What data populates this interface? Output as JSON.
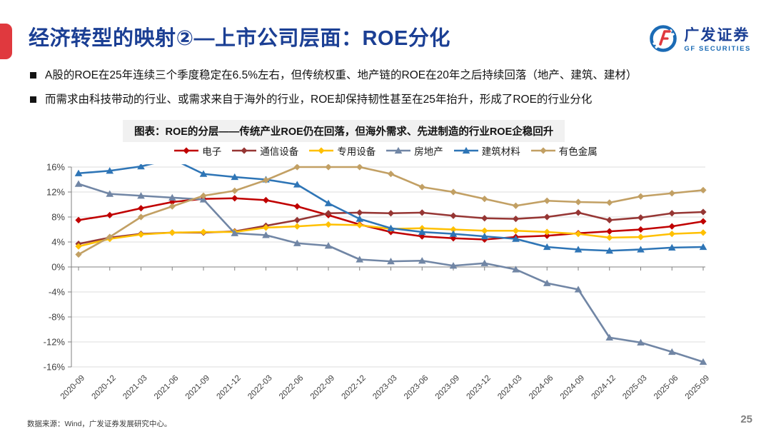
{
  "header": {
    "title": "经济转型的映射②—上市公司层面：ROE分化",
    "logo": {
      "name": "广发证券",
      "sub": "GF SECURITIES"
    }
  },
  "bullets": [
    {
      "glyph": "■",
      "text": "A股的ROE在25年连续三个季度稳定在6.5%左右，但传统权重、地产链的ROE在20年之后持续回落（地产、建筑、建材）"
    },
    {
      "glyph": "■",
      "text": "而需求由科技带动的行业、或需求来自于海外的行业，ROE却保持韧性甚至在25年抬升，形成了ROE的行业分化"
    }
  ],
  "chart_data": {
    "type": "line",
    "title": "图表：ROE的分层——传统产业ROE仍在回落，但海外需求、先进制造的行业ROE企稳回升",
    "categories": [
      "2020-09",
      "2020-12",
      "2021-03",
      "2021-06",
      "2021-09",
      "2021-12",
      "2022-03",
      "2022-06",
      "2022-09",
      "2022-12",
      "2023-03",
      "2023-06",
      "2023-09",
      "2023-12",
      "2024-03",
      "2024-06",
      "2024-09",
      "2024-12",
      "2025-03",
      "2025-06",
      "2025-09"
    ],
    "series": [
      {
        "name": "电子",
        "color": "#c00000",
        "marker": "diamond",
        "values": [
          7.5,
          8.3,
          9.4,
          10.4,
          10.9,
          11.0,
          10.7,
          9.7,
          8.3,
          6.8,
          5.6,
          4.9,
          4.6,
          4.4,
          4.8,
          5.0,
          5.4,
          5.7,
          6.0,
          6.5,
          7.3
        ]
      },
      {
        "name": "通信设备",
        "color": "#963634",
        "marker": "diamond",
        "values": [
          3.7,
          4.7,
          5.3,
          5.5,
          5.5,
          5.7,
          6.6,
          7.5,
          8.6,
          8.7,
          8.6,
          8.7,
          8.2,
          7.8,
          7.7,
          8.0,
          8.7,
          7.5,
          7.9,
          8.6,
          8.8
        ]
      },
      {
        "name": "专用设备",
        "color": "#ffc000",
        "marker": "diamond",
        "values": [
          3.3,
          4.5,
          5.2,
          5.5,
          5.6,
          5.6,
          6.3,
          6.5,
          6.8,
          6.7,
          6.1,
          6.2,
          6.0,
          5.8,
          5.8,
          5.6,
          5.3,
          4.7,
          4.8,
          5.3,
          5.5
        ]
      },
      {
        "name": "房地产",
        "color": "#7186a5",
        "marker": "triangle",
        "values": [
          13.3,
          11.7,
          11.4,
          11.1,
          10.8,
          5.4,
          5.1,
          3.8,
          3.4,
          1.2,
          0.9,
          1.0,
          0.2,
          0.6,
          -0.4,
          -2.6,
          -3.6,
          -11.3,
          -12.1,
          -13.6,
          -15.2
        ]
      },
      {
        "name": "建筑材料",
        "color": "#2e75b6",
        "marker": "triangle",
        "values": [
          15.0,
          15.4,
          16.1,
          17.3,
          14.9,
          14.4,
          14.0,
          13.2,
          10.2,
          7.7,
          6.2,
          5.6,
          5.3,
          4.9,
          4.5,
          3.2,
          2.8,
          2.6,
          2.8,
          3.1,
          3.2
        ]
      },
      {
        "name": "有色金属",
        "color": "#c2a064",
        "marker": "diamond",
        "values": [
          2.0,
          4.8,
          8.0,
          9.7,
          11.4,
          12.2,
          13.9,
          16.0,
          16.0,
          16.0,
          14.9,
          12.8,
          12.0,
          10.9,
          9.8,
          10.6,
          10.4,
          10.3,
          11.3,
          11.8,
          12.3
        ]
      }
    ],
    "xlabel": "",
    "ylabel": "",
    "ylim": [
      -16,
      16
    ],
    "ytick_step": 4,
    "ytick_suffix": "%",
    "grid": true,
    "legend_position": "top",
    "clip_above": 16.45
  },
  "footer": {
    "source": "数据来源：Wind，广发证券发展研究中心。",
    "page": "25"
  },
  "colors": {
    "title_blue": "#1b3f94",
    "accent_red": "#e0393e",
    "logo_blue": "#1b6bb5",
    "chart_title_bg": "#f1f1f1",
    "gridline": "#dcdcdc",
    "axis": "#808080"
  }
}
